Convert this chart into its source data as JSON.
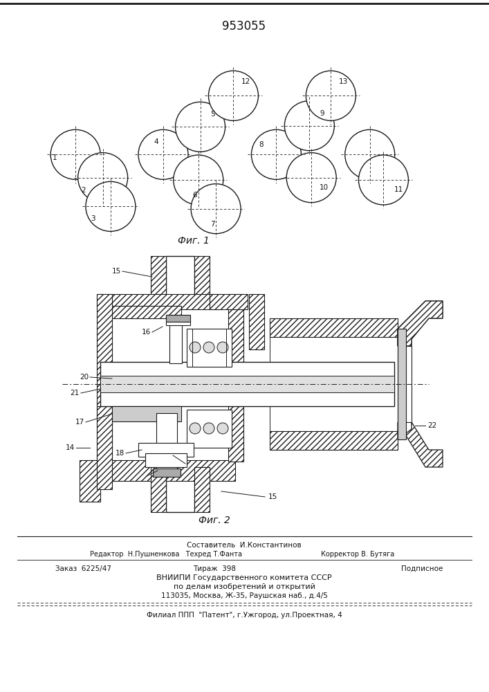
{
  "patent_number": "953055",
  "fig1_label": "Фиг. 1",
  "fig2_label": "Фиг. 2",
  "footer_line1": "Составитель  И.Константинов",
  "footer_left": "Редактор  Н.Пушненкова   Техред Т.Фанта",
  "footer_right": "Корректор В. Бутяга",
  "footer_order": "Заказ  6225/47",
  "footer_circ": "Тираж  398",
  "footer_sign": "Подписное",
  "footer_org1": "ВНИИПИ Государственного комитета СССР",
  "footer_org2": "по делам изобретений и открытий",
  "footer_addr": "113035, Москва, Ж-35, Раушская наб., д.4/5",
  "footer_branch": "Филиал ППП  \"Патент\", г.Ужгород, ул.Проектная, 4",
  "bg_color": "#ffffff",
  "line_color": "#1a1a1a",
  "hatch_color": "#333333",
  "text_color": "#111111"
}
